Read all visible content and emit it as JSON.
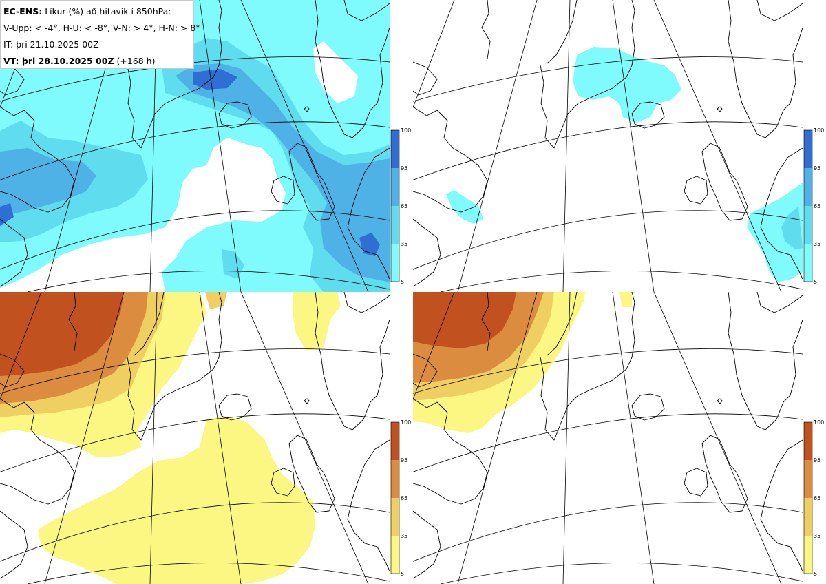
{
  "header": {
    "source_label": "EC-ENS:",
    "title": "Líkur (%) að hitavik í 850hPa:",
    "legend_line": "V-Upp: < -4°, H-U: < -8°, V-N: > 4°, H-N: > 8°",
    "init_time": "IT: þri 21.10.2025 00Z",
    "valid_label": "VT: þri 28.10.2025 00Z",
    "lead_time": "(+168 h)"
  },
  "colors": {
    "cold_levels": [
      "#7ffbfd",
      "#5fdcee",
      "#4fb2e6",
      "#2f6ed2"
    ],
    "warm_levels": [
      "#fcf783",
      "#f0cf62",
      "#db8c3f",
      "#c1521f"
    ],
    "coast": "#000000",
    "graticule": "#000000"
  },
  "panels": [
    {
      "id": "V-Upp",
      "field": "cold"
    },
    {
      "id": "H-U",
      "field": "cold"
    },
    {
      "id": "V-N",
      "field": "warm"
    },
    {
      "id": "H-N",
      "field": "warm"
    }
  ],
  "colorbar": {
    "ticks": [
      "100",
      "95",
      "65",
      "35",
      "5"
    ]
  }
}
